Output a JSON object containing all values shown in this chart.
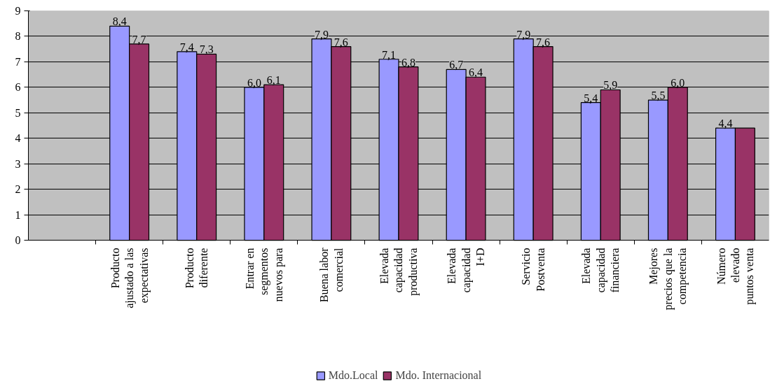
{
  "chart_data": {
    "type": "bar",
    "categories": [
      null,
      "Producto\najustado a las\nexpectativas",
      "Producto\ndiferente",
      "Entrar en\nsegmentos\nnuevos para",
      "Buena labor\ncomercial",
      "Elevada\ncapacidad\nproductiva",
      "Elevada\ncapacidad\nI+D",
      "Servicio\nPostventa",
      "Elevada\ncapacidad\nfinanciera",
      "Mejores\nprecios que la\ncompetencia",
      "Número\nelevado\npuntos venta"
    ],
    "series": [
      {
        "name": "Mdo.Local",
        "color": "#9999ff",
        "values": [
          null,
          8.4,
          7.4,
          6.0,
          7.9,
          7.1,
          6.7,
          7.9,
          5.4,
          5.5,
          4.4
        ],
        "value_labels": [
          null,
          "8,4",
          "7,4",
          "6,0",
          "7,9",
          "7,1",
          "6,7",
          "7,9",
          "5,4",
          "5,5",
          "4,4"
        ]
      },
      {
        "name": "Mdo. Internacional",
        "color": "#993366",
        "values": [
          null,
          7.7,
          7.3,
          6.1,
          7.6,
          6.8,
          6.4,
          7.6,
          5.9,
          6.0,
          4.4
        ],
        "value_labels": [
          null,
          "7,7",
          "7,3",
          "6,1",
          "7,6",
          "6,8",
          "6,4",
          "7,6",
          "5,9",
          "6,0",
          null
        ]
      }
    ],
    "ylim": [
      0,
      9
    ],
    "yticks": [
      0,
      1,
      2,
      3,
      4,
      5,
      6,
      7,
      8,
      9
    ],
    "grid": "y",
    "legend": "bottom"
  }
}
